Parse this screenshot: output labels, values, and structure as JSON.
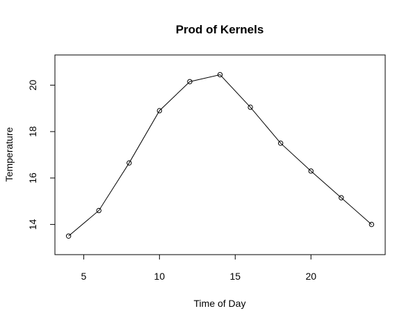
{
  "chart_data": {
    "type": "line",
    "title": "Prod of Kernels",
    "xlabel": "Time of Day",
    "ylabel": "Temperature",
    "xlim": [
      3.1,
      24.9
    ],
    "ylim": [
      12.7,
      21.3
    ],
    "xticks": [
      5,
      10,
      15,
      20
    ],
    "yticks": [
      14,
      16,
      18,
      20
    ],
    "grid": false,
    "legend": "none",
    "marker": "open-circle",
    "line_color": "#000000",
    "series": [
      {
        "x": [
          4,
          6,
          8,
          10,
          12,
          14,
          16,
          18,
          20,
          22,
          24
        ],
        "y": [
          13.5,
          14.6,
          16.65,
          18.9,
          20.15,
          20.45,
          19.05,
          17.5,
          16.3,
          15.15,
          14.0
        ]
      }
    ]
  }
}
